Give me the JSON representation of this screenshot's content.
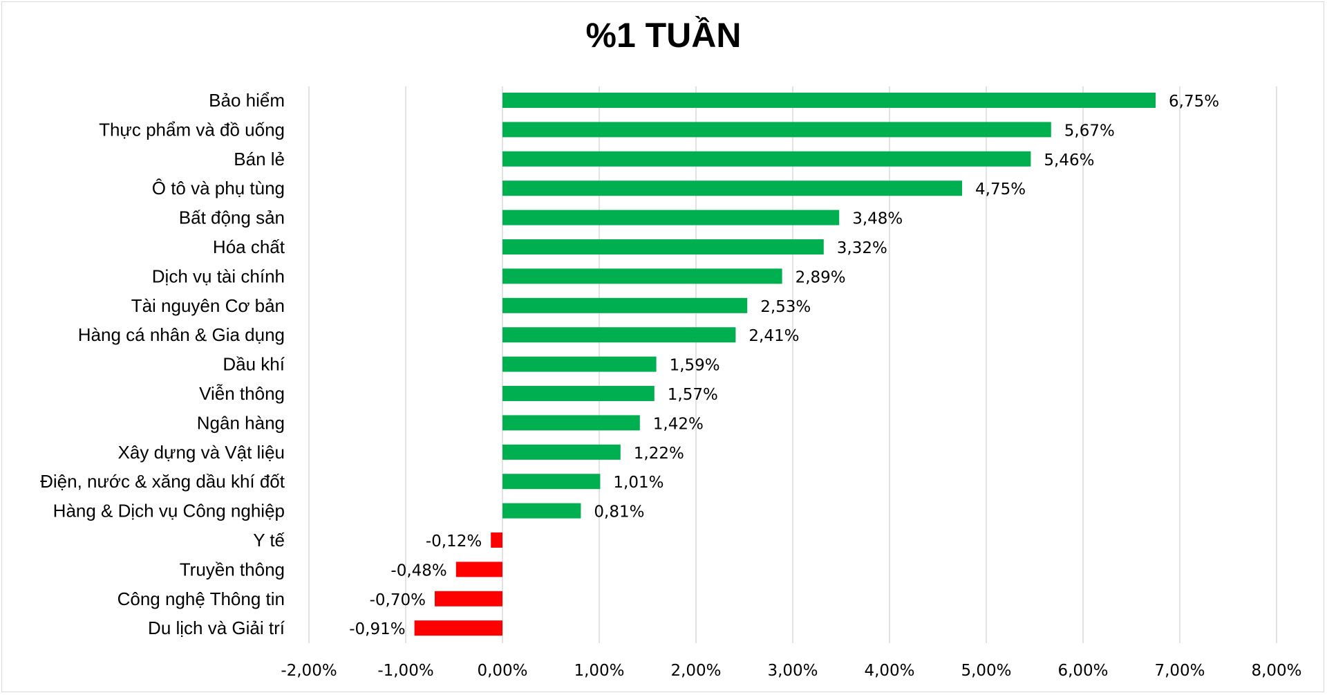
{
  "chart_data": {
    "type": "bar",
    "orientation": "horizontal",
    "title": "%1 TUẦN",
    "categories": [
      "Bảo hiểm",
      "Thực phẩm và đồ uống",
      "Bán lẻ",
      "Ô tô và phụ tùng",
      "Bất động sản",
      "Hóa chất",
      "Dịch vụ tài chính",
      "Tài nguyên Cơ bản",
      "Hàng cá nhân & Gia dụng",
      "Dầu khí",
      "Viễn thông",
      "Ngân hàng",
      "Xây dựng và Vật liệu",
      "Điện, nước & xăng dầu khí đốt",
      "Hàng & Dịch vụ Công nghiệp",
      "Y tế",
      "Truyền thông",
      "Công nghệ Thông tin",
      "Du lịch và Giải trí"
    ],
    "values": [
      6.75,
      5.67,
      5.46,
      4.75,
      3.48,
      3.32,
      2.89,
      2.53,
      2.41,
      1.59,
      1.57,
      1.42,
      1.22,
      1.01,
      0.81,
      -0.12,
      -0.48,
      -0.7,
      -0.91
    ],
    "value_labels": [
      "6,75%",
      "5,67%",
      "5,46%",
      "4,75%",
      "3,48%",
      "3,32%",
      "2,89%",
      "2,53%",
      "2,41%",
      "1,59%",
      "1,57%",
      "1,42%",
      "1,22%",
      "1,01%",
      "0,81%",
      "-0,12%",
      "-0,48%",
      "-0,70%",
      "-0,91%"
    ],
    "xlim": [
      -2,
      8
    ],
    "xticks": [
      -2,
      -1,
      0,
      1,
      2,
      3,
      4,
      5,
      6,
      7,
      8
    ],
    "xtick_labels": [
      "-2,00%",
      "-1,00%",
      "0,00%",
      "1,00%",
      "2,00%",
      "3,00%",
      "4,00%",
      "5,00%",
      "6,00%",
      "7,00%",
      "8,00%"
    ],
    "grid": "vertical",
    "legend": "none",
    "colors": {
      "positive": "#00b050",
      "negative": "#ff0000",
      "grid": "#d9d9d9"
    }
  }
}
